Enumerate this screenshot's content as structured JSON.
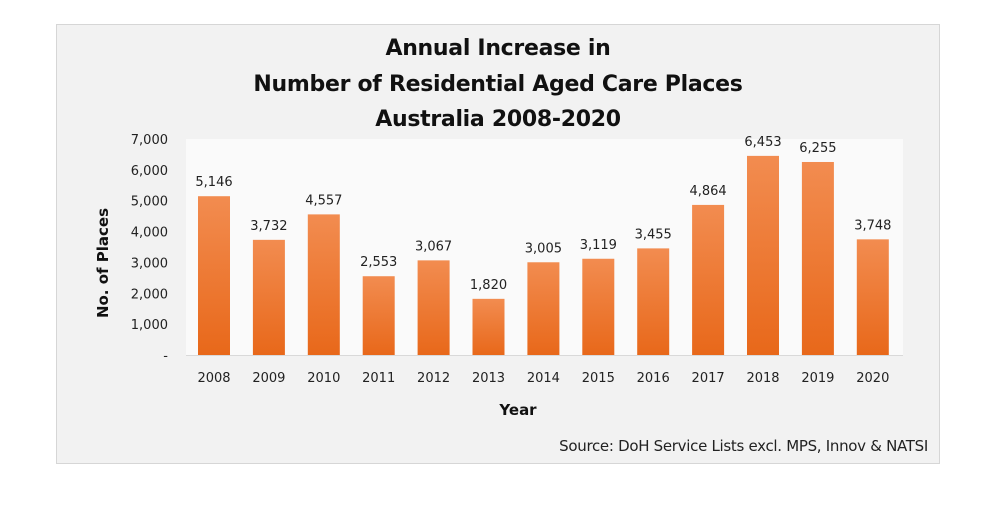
{
  "chart_data": {
    "type": "bar",
    "title": [
      "Annual Increase in",
      "Number of Residential Aged Care Places",
      "Australia 2008-2020"
    ],
    "xlabel": "Year",
    "ylabel": "No. of Places",
    "categories": [
      "2008",
      "2009",
      "2010",
      "2011",
      "2012",
      "2013",
      "2014",
      "2015",
      "2016",
      "2017",
      "2018",
      "2019",
      "2020"
    ],
    "values": [
      5146,
      3732,
      4557,
      2553,
      3067,
      1820,
      3005,
      3119,
      3455,
      4864,
      6453,
      6255,
      3748
    ],
    "data_labels": [
      "5,146",
      "3,732",
      "4,557",
      "2,553",
      "3,067",
      "1,820",
      "3,005",
      "3,119",
      "3,455",
      "4,864",
      "6,453",
      "6,255",
      "3,748"
    ],
    "ylim": [
      0,
      7000
    ],
    "yticks": [
      0,
      1000,
      2000,
      3000,
      4000,
      5000,
      6000,
      7000
    ],
    "ytick_labels": [
      "-",
      "1,000",
      "2,000",
      "3,000",
      "4,000",
      "5,000",
      "6,000",
      "7,000"
    ],
    "grid": false,
    "legend": "none",
    "bar_color_top": "#f28c50",
    "bar_color_bottom": "#e8681a",
    "source": "Source:  DoH Service Lists excl. MPS,  Innov & NATSI"
  }
}
